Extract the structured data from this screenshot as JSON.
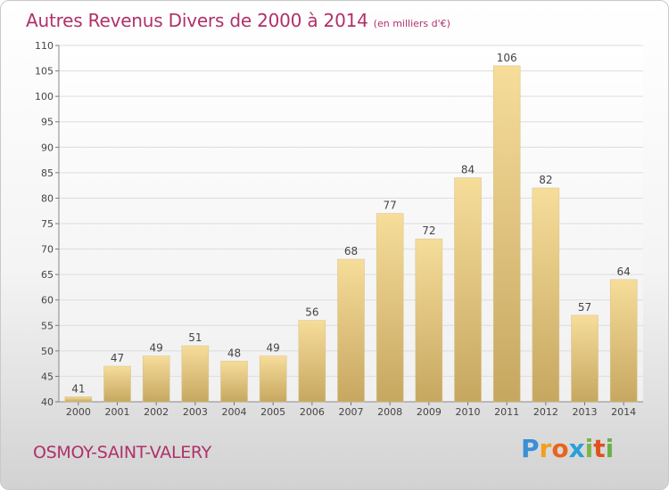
{
  "title": "Autres Revenus Divers de 2000 à 2014",
  "subtitle": "(en milliers d'€)",
  "commune": "OSMOY-SAINT-VALERY",
  "logo": {
    "letters": [
      "P",
      "r",
      "o",
      "x",
      "i",
      "t",
      "i"
    ],
    "colors": [
      "#3a8fd6",
      "#f0a020",
      "#e8641c",
      "#2aa0d8",
      "#7ab648",
      "#e0501e",
      "#6ab04c"
    ]
  },
  "chart_data": {
    "type": "bar",
    "title": "Autres Revenus Divers de 2000 à 2014",
    "subtitle": "(en milliers d'€)",
    "categories": [
      "2000",
      "2001",
      "2002",
      "2003",
      "2004",
      "2005",
      "2006",
      "2007",
      "2008",
      "2009",
      "2010",
      "2011",
      "2012",
      "2013",
      "2014"
    ],
    "values": [
      41,
      47,
      49,
      51,
      48,
      49,
      56,
      68,
      77,
      72,
      84,
      106,
      82,
      57,
      64
    ],
    "ylim": [
      40,
      110
    ],
    "yticks": [
      40,
      45,
      50,
      55,
      60,
      65,
      70,
      75,
      80,
      85,
      90,
      95,
      100,
      105,
      110
    ],
    "grid": true,
    "colors": {
      "bar_top": "#f5dc98",
      "bar_bottom": "#c8aa62",
      "label": "#444444"
    }
  }
}
